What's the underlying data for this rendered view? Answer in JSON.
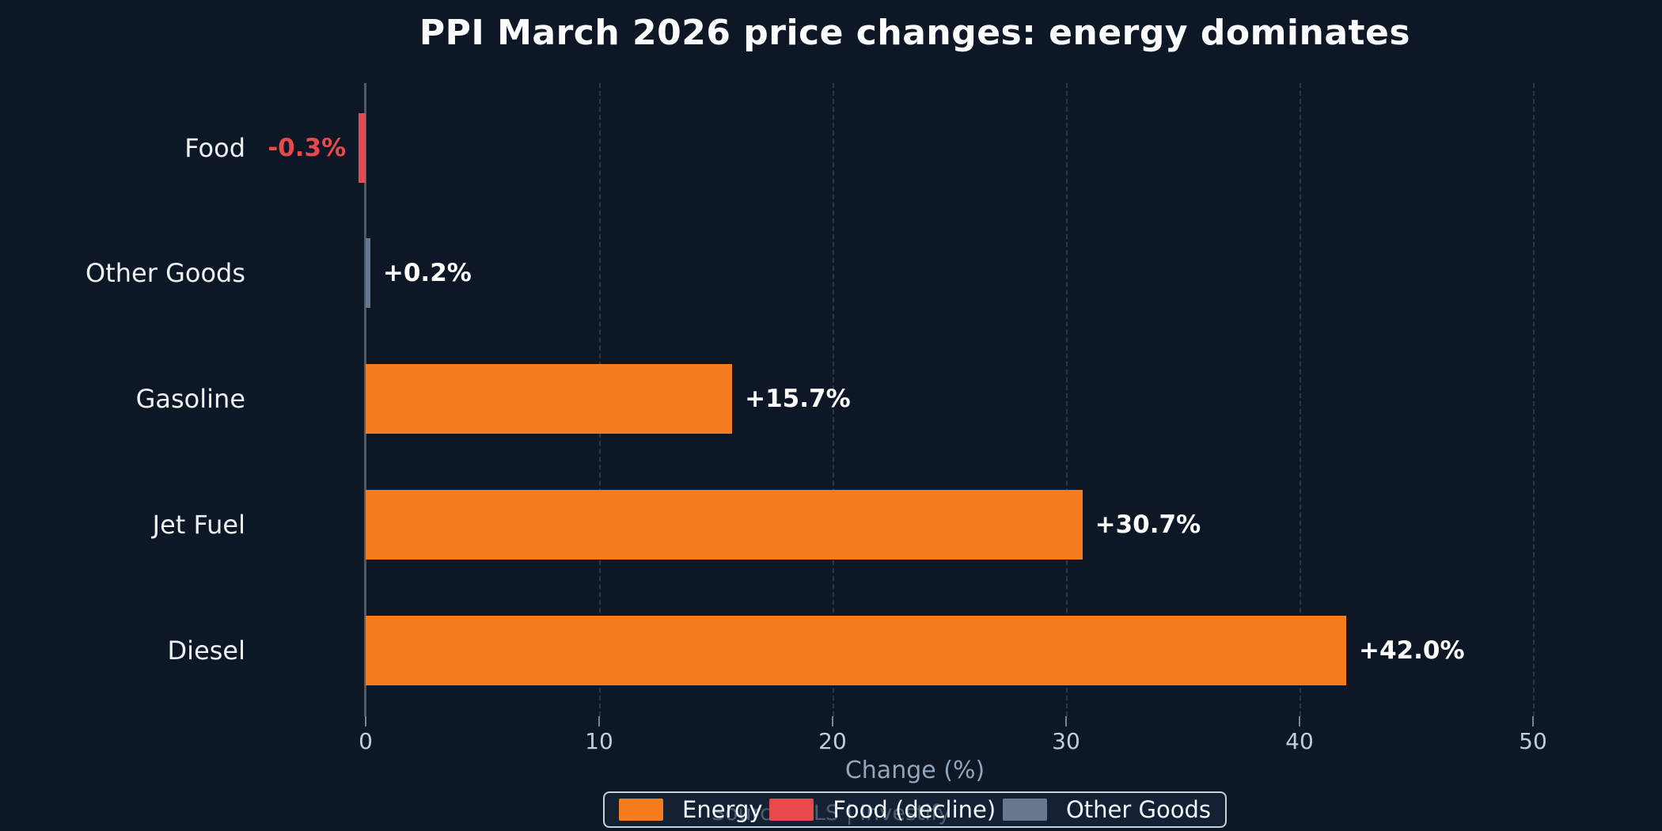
{
  "title": "PPI March 2026 price changes: energy dominates",
  "colors": {
    "background": "#0d1726",
    "title_text": "#fbfdff",
    "category_label": "#edf2f7",
    "value_label": "#ffffff",
    "negative_value_label": "#e9494c",
    "axis_line": "#4d5a68",
    "gridline": "#27374d",
    "tick_label": "#c3cdd9",
    "axis_title": "#93a5ba",
    "legend_border": "#c8d2dc",
    "legend_text": "#f2f6fa",
    "source_text": "#8b97a8",
    "energy": "#f57d1f",
    "food_decline": "#e9494c",
    "other_goods": "#67778d"
  },
  "chart_data": {
    "type": "bar",
    "orientation": "horizontal",
    "title": "PPI March 2026 price changes: energy dominates",
    "xlabel": "Change (%)",
    "xticks": [
      0,
      10,
      20,
      30,
      40,
      50
    ],
    "xlim": [
      -2.6,
      52
    ],
    "grid": "vertical dashed gridlines at each tick",
    "legend_position": "bottom center",
    "categories": [
      "Food",
      "Other Goods",
      "Gasoline",
      "Jet Fuel",
      "Diesel"
    ],
    "values": [
      -0.3,
      0.2,
      15.7,
      30.7,
      42.0
    ],
    "rows": [
      {
        "label": "Food",
        "value": -0.3,
        "value_label": "-0.3%",
        "series": "Food (decline)",
        "color": "#e9494c"
      },
      {
        "label": "Other Goods",
        "value": 0.2,
        "value_label": "+0.2%",
        "series": "Other Goods",
        "color": "#67778d"
      },
      {
        "label": "Gasoline",
        "value": 15.7,
        "value_label": "+15.7%",
        "series": "Energy",
        "color": "#f57d1f"
      },
      {
        "label": "Jet Fuel",
        "value": 30.7,
        "value_label": "+30.7%",
        "series": "Energy",
        "color": "#f57d1f"
      },
      {
        "label": "Diesel",
        "value": 42.0,
        "value_label": "+42.0%",
        "series": "Energy",
        "color": "#f57d1f"
      }
    ],
    "legend": [
      {
        "label": "Energy",
        "color": "#f57d1f"
      },
      {
        "label": "Food (decline)",
        "color": "#e9494c"
      },
      {
        "label": "Other Goods",
        "color": "#67778d"
      }
    ],
    "source": "Source: BLS | Investify"
  }
}
